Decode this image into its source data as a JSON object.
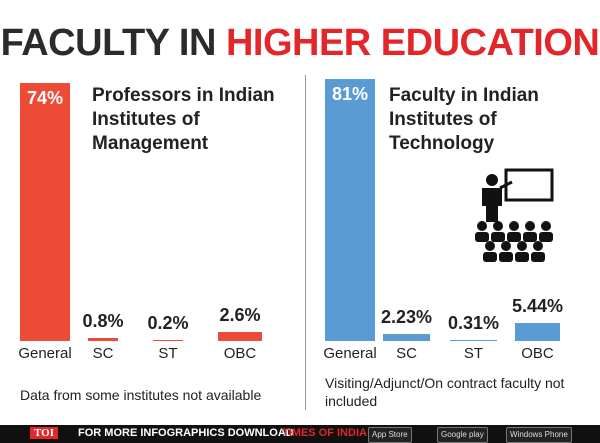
{
  "header": {
    "title": [
      "FACULTY IN",
      "HIGHER EDUCATION"
    ]
  },
  "chart_data": [
    {
      "type": "bar",
      "title": "Professors in Indian Institutes of Management",
      "color": "#ee4b37",
      "categories": [
        "General",
        "SC",
        "ST",
        "OBC"
      ],
      "values": [
        74,
        0.8,
        0.2,
        2.6
      ],
      "value_labels": [
        "74%",
        "0.8%",
        "0.2%",
        "2.6%"
      ],
      "note": "Data from some institutes not available"
    },
    {
      "type": "bar",
      "title": "Faculty in Indian Institutes of Technology",
      "color": "#5b9bd5",
      "categories": [
        "General",
        "SC",
        "ST",
        "OBC"
      ],
      "values": [
        81,
        2.23,
        0.31,
        5.44
      ],
      "value_labels": [
        "81%",
        "2.23%",
        "0.31%",
        "5.44%"
      ],
      "note": "Visiting/Adjunct/On contract faculty not included"
    }
  ],
  "footer": {
    "logo": "TOI",
    "text": "FOR MORE INFOGRAPHICS DOWNLOAD",
    "app": "TIMES OF INDIA APP",
    "badges": [
      "App Store",
      "Google play",
      "Windows Phone"
    ]
  }
}
